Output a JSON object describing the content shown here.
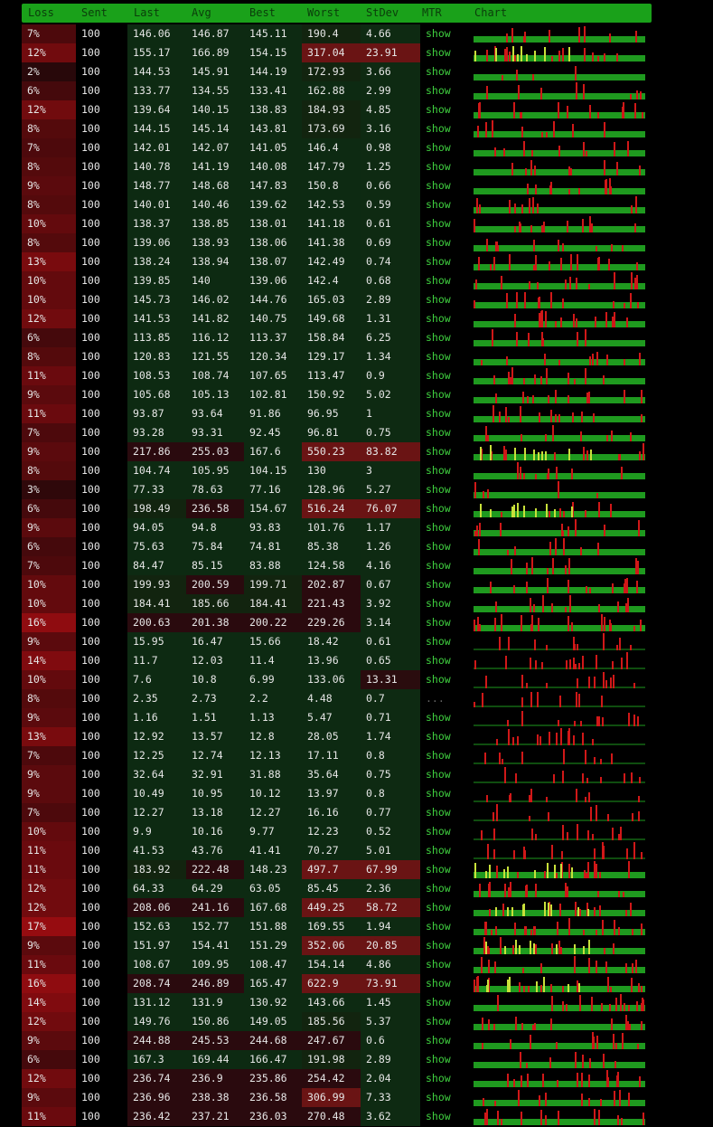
{
  "headers": [
    "Loss",
    "Sent",
    "Last",
    "Avg",
    "Best",
    "Worst",
    "StDev",
    "MTR",
    "Chart"
  ],
  "colors": {
    "header_bg": "#1aa11a",
    "show_link": "#3fcf3f",
    "chart_good": "#1f9a1f",
    "chart_spike": "#d01818",
    "chart_warn": "#c8e03a"
  },
  "rows": [
    {
      "loss": "7%",
      "sent": "100",
      "last": "146.06",
      "avg": "146.87",
      "best": "145.11",
      "worst": "190.4",
      "stdev": "4.66",
      "mtr": "show"
    },
    {
      "loss": "12%",
      "sent": "100",
      "last": "155.17",
      "avg": "166.89",
      "best": "154.15",
      "worst": "317.04",
      "stdev": "23.91",
      "mtr": "show"
    },
    {
      "loss": "2%",
      "sent": "100",
      "last": "144.53",
      "avg": "145.91",
      "best": "144.19",
      "worst": "172.93",
      "stdev": "3.66",
      "mtr": "show"
    },
    {
      "loss": "6%",
      "sent": "100",
      "last": "133.77",
      "avg": "134.55",
      "best": "133.41",
      "worst": "162.88",
      "stdev": "2.99",
      "mtr": "show"
    },
    {
      "loss": "12%",
      "sent": "100",
      "last": "139.64",
      "avg": "140.15",
      "best": "138.83",
      "worst": "184.93",
      "stdev": "4.85",
      "mtr": "show"
    },
    {
      "loss": "8%",
      "sent": "100",
      "last": "144.15",
      "avg": "145.14",
      "best": "143.81",
      "worst": "173.69",
      "stdev": "3.16",
      "mtr": "show"
    },
    {
      "loss": "7%",
      "sent": "100",
      "last": "142.01",
      "avg": "142.07",
      "best": "141.05",
      "worst": "146.4",
      "stdev": "0.98",
      "mtr": "show"
    },
    {
      "loss": "8%",
      "sent": "100",
      "last": "140.78",
      "avg": "141.19",
      "best": "140.08",
      "worst": "147.79",
      "stdev": "1.25",
      "mtr": "show"
    },
    {
      "loss": "9%",
      "sent": "100",
      "last": "148.77",
      "avg": "148.68",
      "best": "147.83",
      "worst": "150.8",
      "stdev": "0.66",
      "mtr": "show"
    },
    {
      "loss": "8%",
      "sent": "100",
      "last": "140.01",
      "avg": "140.46",
      "best": "139.62",
      "worst": "142.53",
      "stdev": "0.59",
      "mtr": "show"
    },
    {
      "loss": "10%",
      "sent": "100",
      "last": "138.37",
      "avg": "138.85",
      "best": "138.01",
      "worst": "141.18",
      "stdev": "0.61",
      "mtr": "show"
    },
    {
      "loss": "8%",
      "sent": "100",
      "last": "139.06",
      "avg": "138.93",
      "best": "138.06",
      "worst": "141.38",
      "stdev": "0.69",
      "mtr": "show"
    },
    {
      "loss": "13%",
      "sent": "100",
      "last": "138.24",
      "avg": "138.94",
      "best": "138.07",
      "worst": "142.49",
      "stdev": "0.74",
      "mtr": "show"
    },
    {
      "loss": "10%",
      "sent": "100",
      "last": "139.85",
      "avg": "140",
      "best": "139.06",
      "worst": "142.4",
      "stdev": "0.68",
      "mtr": "show"
    },
    {
      "loss": "10%",
      "sent": "100",
      "last": "145.73",
      "avg": "146.02",
      "best": "144.76",
      "worst": "165.03",
      "stdev": "2.89",
      "mtr": "show"
    },
    {
      "loss": "12%",
      "sent": "100",
      "last": "141.53",
      "avg": "141.82",
      "best": "140.75",
      "worst": "149.68",
      "stdev": "1.31",
      "mtr": "show"
    },
    {
      "loss": "6%",
      "sent": "100",
      "last": "113.85",
      "avg": "116.12",
      "best": "113.37",
      "worst": "158.84",
      "stdev": "6.25",
      "mtr": "show"
    },
    {
      "loss": "8%",
      "sent": "100",
      "last": "120.83",
      "avg": "121.55",
      "best": "120.34",
      "worst": "129.17",
      "stdev": "1.34",
      "mtr": "show"
    },
    {
      "loss": "11%",
      "sent": "100",
      "last": "108.53",
      "avg": "108.74",
      "best": "107.65",
      "worst": "113.47",
      "stdev": "0.9",
      "mtr": "show"
    },
    {
      "loss": "9%",
      "sent": "100",
      "last": "105.68",
      "avg": "105.13",
      "best": "102.81",
      "worst": "150.92",
      "stdev": "5.02",
      "mtr": "show"
    },
    {
      "loss": "11%",
      "sent": "100",
      "last": "93.87",
      "avg": "93.64",
      "best": "91.86",
      "worst": "96.95",
      "stdev": "1",
      "mtr": "show"
    },
    {
      "loss": "7%",
      "sent": "100",
      "last": "93.28",
      "avg": "93.31",
      "best": "92.45",
      "worst": "96.81",
      "stdev": "0.75",
      "mtr": "show"
    },
    {
      "loss": "9%",
      "sent": "100",
      "last": "217.86",
      "avg": "255.03",
      "best": "167.6",
      "worst": "550.23",
      "stdev": "83.82",
      "mtr": "show"
    },
    {
      "loss": "8%",
      "sent": "100",
      "last": "104.74",
      "avg": "105.95",
      "best": "104.15",
      "worst": "130",
      "stdev": "3",
      "mtr": "show"
    },
    {
      "loss": "3%",
      "sent": "100",
      "last": "77.33",
      "avg": "78.63",
      "best": "77.16",
      "worst": "128.96",
      "stdev": "5.27",
      "mtr": "show"
    },
    {
      "loss": "6%",
      "sent": "100",
      "last": "198.49",
      "avg": "236.58",
      "best": "154.67",
      "worst": "516.24",
      "stdev": "76.07",
      "mtr": "show"
    },
    {
      "loss": "9%",
      "sent": "100",
      "last": "94.05",
      "avg": "94.8",
      "best": "93.83",
      "worst": "101.76",
      "stdev": "1.17",
      "mtr": "show"
    },
    {
      "loss": "6%",
      "sent": "100",
      "last": "75.63",
      "avg": "75.84",
      "best": "74.81",
      "worst": "85.38",
      "stdev": "1.26",
      "mtr": "show"
    },
    {
      "loss": "7%",
      "sent": "100",
      "last": "84.47",
      "avg": "85.15",
      "best": "83.88",
      "worst": "124.58",
      "stdev": "4.16",
      "mtr": "show"
    },
    {
      "loss": "10%",
      "sent": "100",
      "last": "199.93",
      "avg": "200.59",
      "best": "199.71",
      "worst": "202.87",
      "stdev": "0.67",
      "mtr": "show"
    },
    {
      "loss": "10%",
      "sent": "100",
      "last": "184.41",
      "avg": "185.66",
      "best": "184.41",
      "worst": "221.43",
      "stdev": "3.92",
      "mtr": "show"
    },
    {
      "loss": "16%",
      "sent": "100",
      "last": "200.63",
      "avg": "201.38",
      "best": "200.22",
      "worst": "229.26",
      "stdev": "3.14",
      "mtr": "show"
    },
    {
      "loss": "9%",
      "sent": "100",
      "last": "15.95",
      "avg": "16.47",
      "best": "15.66",
      "worst": "18.42",
      "stdev": "0.61",
      "mtr": "show"
    },
    {
      "loss": "14%",
      "sent": "100",
      "last": "11.7",
      "avg": "12.03",
      "best": "11.4",
      "worst": "13.96",
      "stdev": "0.65",
      "mtr": "show"
    },
    {
      "loss": "10%",
      "sent": "100",
      "last": "7.6",
      "avg": "10.8",
      "best": "6.99",
      "worst": "133.06",
      "stdev": "13.31",
      "mtr": "show"
    },
    {
      "loss": "8%",
      "sent": "100",
      "last": "2.35",
      "avg": "2.73",
      "best": "2.2",
      "worst": "4.48",
      "stdev": "0.7",
      "mtr": "..."
    },
    {
      "loss": "9%",
      "sent": "100",
      "last": "1.16",
      "avg": "1.51",
      "best": "1.13",
      "worst": "5.47",
      "stdev": "0.71",
      "mtr": "show"
    },
    {
      "loss": "13%",
      "sent": "100",
      "last": "12.92",
      "avg": "13.57",
      "best": "12.8",
      "worst": "28.05",
      "stdev": "1.74",
      "mtr": "show"
    },
    {
      "loss": "7%",
      "sent": "100",
      "last": "12.25",
      "avg": "12.74",
      "best": "12.13",
      "worst": "17.11",
      "stdev": "0.8",
      "mtr": "show"
    },
    {
      "loss": "9%",
      "sent": "100",
      "last": "32.64",
      "avg": "32.91",
      "best": "31.88",
      "worst": "35.64",
      "stdev": "0.75",
      "mtr": "show"
    },
    {
      "loss": "9%",
      "sent": "100",
      "last": "10.49",
      "avg": "10.95",
      "best": "10.12",
      "worst": "13.97",
      "stdev": "0.8",
      "mtr": "show"
    },
    {
      "loss": "7%",
      "sent": "100",
      "last": "12.27",
      "avg": "13.18",
      "best": "12.27",
      "worst": "16.16",
      "stdev": "0.77",
      "mtr": "show"
    },
    {
      "loss": "10%",
      "sent": "100",
      "last": "9.9",
      "avg": "10.16",
      "best": "9.77",
      "worst": "12.23",
      "stdev": "0.52",
      "mtr": "show"
    },
    {
      "loss": "11%",
      "sent": "100",
      "last": "41.53",
      "avg": "43.76",
      "best": "41.41",
      "worst": "70.27",
      "stdev": "5.01",
      "mtr": "show"
    },
    {
      "loss": "11%",
      "sent": "100",
      "last": "183.92",
      "avg": "222.48",
      "best": "148.23",
      "worst": "497.7",
      "stdev": "67.99",
      "mtr": "show"
    },
    {
      "loss": "12%",
      "sent": "100",
      "last": "64.33",
      "avg": "64.29",
      "best": "63.05",
      "worst": "85.45",
      "stdev": "2.36",
      "mtr": "show"
    },
    {
      "loss": "12%",
      "sent": "100",
      "last": "208.06",
      "avg": "241.16",
      "best": "167.68",
      "worst": "449.25",
      "stdev": "58.72",
      "mtr": "show"
    },
    {
      "loss": "17%",
      "sent": "100",
      "last": "152.63",
      "avg": "152.77",
      "best": "151.88",
      "worst": "169.55",
      "stdev": "1.94",
      "mtr": "show"
    },
    {
      "loss": "9%",
      "sent": "100",
      "last": "151.97",
      "avg": "154.41",
      "best": "151.29",
      "worst": "352.06",
      "stdev": "20.85",
      "mtr": "show"
    },
    {
      "loss": "11%",
      "sent": "100",
      "last": "108.67",
      "avg": "109.95",
      "best": "108.47",
      "worst": "154.14",
      "stdev": "4.86",
      "mtr": "show"
    },
    {
      "loss": "16%",
      "sent": "100",
      "last": "208.74",
      "avg": "246.89",
      "best": "165.47",
      "worst": "622.9",
      "stdev": "73.91",
      "mtr": "show"
    },
    {
      "loss": "14%",
      "sent": "100",
      "last": "131.12",
      "avg": "131.9",
      "best": "130.92",
      "worst": "143.66",
      "stdev": "1.45",
      "mtr": "show"
    },
    {
      "loss": "12%",
      "sent": "100",
      "last": "149.76",
      "avg": "150.86",
      "best": "149.05",
      "worst": "185.56",
      "stdev": "5.37",
      "mtr": "show"
    },
    {
      "loss": "9%",
      "sent": "100",
      "last": "244.88",
      "avg": "245.53",
      "best": "244.68",
      "worst": "247.67",
      "stdev": "0.6",
      "mtr": "show"
    },
    {
      "loss": "6%",
      "sent": "100",
      "last": "167.3",
      "avg": "169.44",
      "best": "166.47",
      "worst": "191.98",
      "stdev": "2.89",
      "mtr": "show"
    },
    {
      "loss": "12%",
      "sent": "100",
      "last": "236.74",
      "avg": "236.9",
      "best": "235.86",
      "worst": "254.42",
      "stdev": "2.04",
      "mtr": "show"
    },
    {
      "loss": "9%",
      "sent": "100",
      "last": "236.96",
      "avg": "238.38",
      "best": "236.58",
      "worst": "306.99",
      "stdev": "7.33",
      "mtr": "show"
    },
    {
      "loss": "11%",
      "sent": "100",
      "last": "236.42",
      "avg": "237.21",
      "best": "236.03",
      "worst": "270.48",
      "stdev": "3.62",
      "mtr": "show"
    }
  ]
}
